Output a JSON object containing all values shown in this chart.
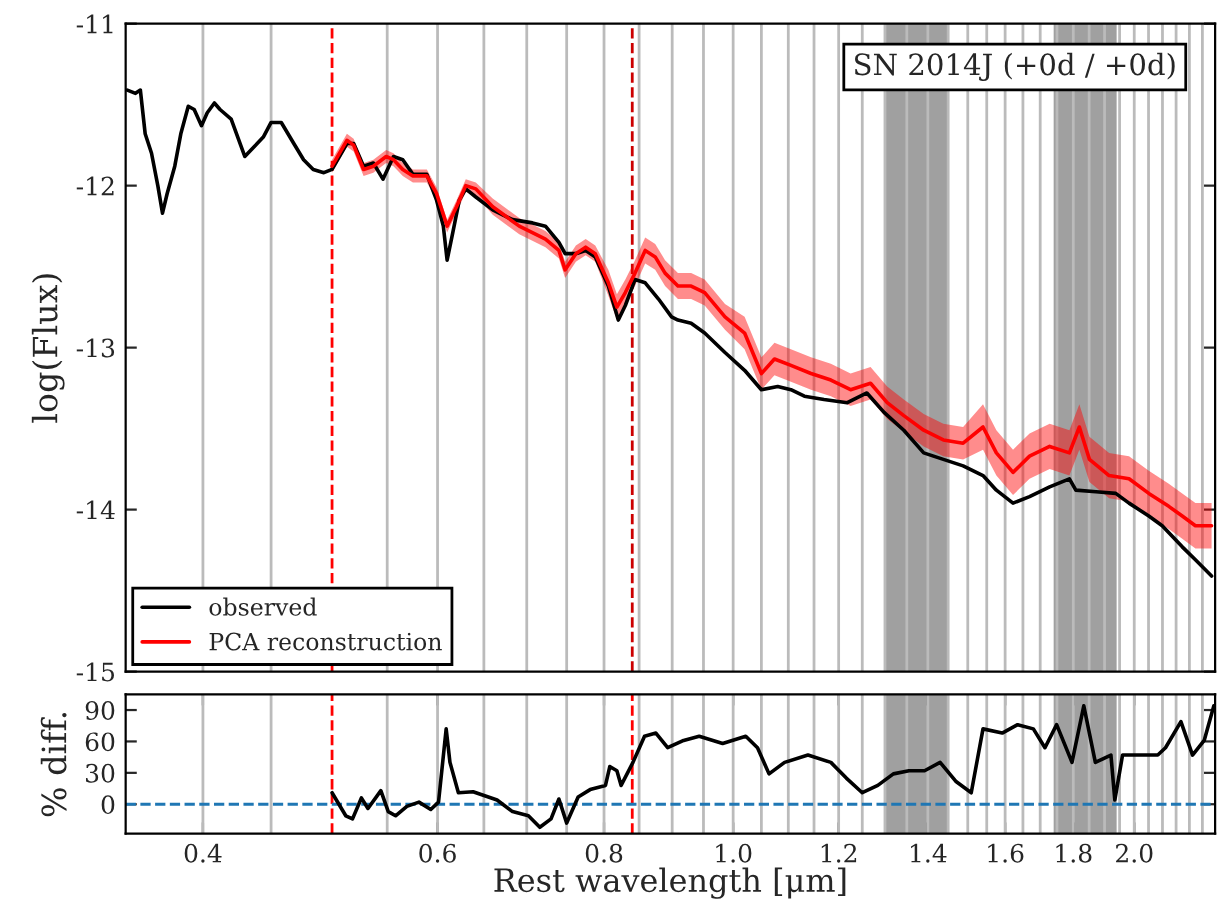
{
  "chart_data": [
    {
      "type": "line",
      "ylabel": "log(Flux)",
      "log": "x",
      "xlim": [
        0.35,
        2.3
      ],
      "ylim": [
        -15,
        -11
      ],
      "yticks": [
        -15,
        -14,
        -13,
        -12,
        -11
      ],
      "tick_labels": "y",
      "legend": "bottom left",
      "grid": false,
      "annotations": [
        "SN 2014J (+0d / +0d)"
      ],
      "bands": [
        {
          "axis": "x",
          "from": 1.3,
          "to": 1.45,
          "color": "#a0a0a0"
        },
        {
          "axis": "x",
          "from": 1.74,
          "to": 1.94,
          "color": "#a0a0a0"
        }
      ],
      "ref_lines": [
        {
          "axis": "x",
          "value": 0.4,
          "color": "#bbbbbb"
        },
        {
          "axis": "x",
          "value": 0.45,
          "color": "#bbbbbb"
        },
        {
          "axis": "x",
          "value": 0.55,
          "color": "#bbbbbb"
        },
        {
          "axis": "x",
          "value": 0.6,
          "color": "#bbbbbb"
        },
        {
          "axis": "x",
          "value": 0.65,
          "color": "#bbbbbb"
        },
        {
          "axis": "x",
          "value": 0.7,
          "color": "#bbbbbb"
        },
        {
          "axis": "x",
          "value": 0.75,
          "color": "#bbbbbb"
        },
        {
          "axis": "x",
          "value": 0.8,
          "color": "#bbbbbb"
        },
        {
          "axis": "x",
          "value": 0.85,
          "color": "#bbbbbb"
        },
        {
          "axis": "x",
          "value": 0.9,
          "color": "#bbbbbb"
        },
        {
          "axis": "x",
          "value": 0.95,
          "color": "#bbbbbb"
        },
        {
          "axis": "x",
          "value": 1.0,
          "color": "#bbbbbb"
        },
        {
          "axis": "x",
          "value": 1.05,
          "color": "#bbbbbb"
        },
        {
          "axis": "x",
          "value": 1.1,
          "color": "#bbbbbb"
        },
        {
          "axis": "x",
          "value": 1.15,
          "color": "#bbbbbb"
        },
        {
          "axis": "x",
          "value": 1.2,
          "color": "#bbbbbb"
        },
        {
          "axis": "x",
          "value": 1.25,
          "color": "#bbbbbb"
        },
        {
          "axis": "x",
          "value": 1.3,
          "color": "#bbbbbb"
        },
        {
          "axis": "x",
          "value": 1.35,
          "color": "#bbbbbb"
        },
        {
          "axis": "x",
          "value": 1.4,
          "color": "#bbbbbb"
        },
        {
          "axis": "x",
          "value": 1.45,
          "color": "#bbbbbb"
        },
        {
          "axis": "x",
          "value": 1.5,
          "color": "#bbbbbb"
        },
        {
          "axis": "x",
          "value": 1.55,
          "color": "#bbbbbb"
        },
        {
          "axis": "x",
          "value": 1.6,
          "color": "#bbbbbb"
        },
        {
          "axis": "x",
          "value": 1.65,
          "color": "#bbbbbb"
        },
        {
          "axis": "x",
          "value": 1.7,
          "color": "#bbbbbb"
        },
        {
          "axis": "x",
          "value": 1.75,
          "color": "#bbbbbb"
        },
        {
          "axis": "x",
          "value": 1.8,
          "color": "#bbbbbb"
        },
        {
          "axis": "x",
          "value": 1.85,
          "color": "#bbbbbb"
        },
        {
          "axis": "x",
          "value": 1.9,
          "color": "#bbbbbb"
        },
        {
          "axis": "x",
          "value": 1.95,
          "color": "#bbbbbb"
        },
        {
          "axis": "x",
          "value": 2.0,
          "color": "#bbbbbb"
        },
        {
          "axis": "x",
          "value": 2.05,
          "color": "#bbbbbb"
        },
        {
          "axis": "x",
          "value": 2.1,
          "color": "#bbbbbb"
        },
        {
          "axis": "x",
          "value": 2.15,
          "color": "#bbbbbb"
        },
        {
          "axis": "x",
          "value": 2.2,
          "color": "#bbbbbb"
        },
        {
          "axis": "x",
          "value": 2.25,
          "color": "#bbbbbb"
        },
        {
          "axis": "x",
          "value": 0.5,
          "color": "#ff0000",
          "line_style": "dashed"
        },
        {
          "axis": "x",
          "value": 0.84,
          "color": "#cc0000",
          "line_style": "dashed"
        }
      ],
      "series": [
        {
          "name": "observed",
          "color": "#000000",
          "x": [
            0.351,
            0.356,
            0.359,
            0.362,
            0.366,
            0.37,
            0.373,
            0.376,
            0.381,
            0.385,
            0.39,
            0.394,
            0.399,
            0.403,
            0.408,
            0.412,
            0.42,
            0.43,
            0.437,
            0.444,
            0.45,
            0.458,
            0.468,
            0.476,
            0.484,
            0.493,
            0.5,
            0.513,
            0.519,
            0.528,
            0.537,
            0.546,
            0.556,
            0.565,
            0.575,
            0.589,
            0.599,
            0.606,
            0.61,
            0.616,
            0.623,
            0.63,
            0.641,
            0.66,
            0.683,
            0.707,
            0.723,
            0.74,
            0.748,
            0.762,
            0.775,
            0.788,
            0.806,
            0.82,
            0.83,
            0.844,
            0.859,
            0.879,
            0.899,
            0.909,
            0.93,
            0.952,
            0.986,
            1.02,
            1.05,
            1.08,
            1.105,
            1.131,
            1.17,
            1.218,
            1.26,
            1.298,
            1.343,
            1.39,
            1.438,
            1.488,
            1.54,
            1.576,
            1.622,
            1.669,
            1.728,
            1.788,
            1.808,
            1.872,
            1.937,
            1.982,
            2.051,
            2.099,
            2.173,
            2.223,
            2.286
          ],
          "values": [
            -11.41,
            -11.43,
            -11.41,
            -11.68,
            -11.8,
            -12.0,
            -12.17,
            -12.05,
            -11.88,
            -11.68,
            -11.51,
            -11.53,
            -11.63,
            -11.55,
            -11.49,
            -11.53,
            -11.59,
            -11.82,
            -11.76,
            -11.7,
            -11.61,
            -11.61,
            -11.74,
            -11.84,
            -11.9,
            -11.92,
            -11.9,
            -11.74,
            -11.74,
            -11.88,
            -11.86,
            -11.96,
            -11.82,
            -11.84,
            -11.93,
            -11.93,
            -12.09,
            -12.25,
            -12.46,
            -12.29,
            -12.09,
            -12.02,
            -12.07,
            -12.15,
            -12.21,
            -12.23,
            -12.25,
            -12.35,
            -12.42,
            -12.42,
            -12.4,
            -12.44,
            -12.62,
            -12.83,
            -12.74,
            -12.58,
            -12.6,
            -12.7,
            -12.81,
            -12.83,
            -12.85,
            -12.91,
            -13.03,
            -13.14,
            -13.26,
            -13.24,
            -13.26,
            -13.3,
            -13.32,
            -13.34,
            -13.28,
            -13.4,
            -13.51,
            -13.65,
            -13.69,
            -13.73,
            -13.79,
            -13.88,
            -13.96,
            -13.92,
            -13.86,
            -13.81,
            -13.88,
            -13.89,
            -13.9,
            -13.96,
            -14.04,
            -14.1,
            -14.23,
            -14.31,
            -14.41
          ]
        },
        {
          "name": "PCA reconstruction",
          "color": "#ff0000",
          "x": [
            0.5,
            0.513,
            0.519,
            0.528,
            0.537,
            0.549,
            0.556,
            0.565,
            0.575,
            0.589,
            0.599,
            0.61,
            0.62,
            0.63,
            0.641,
            0.66,
            0.691,
            0.723,
            0.74,
            0.748,
            0.762,
            0.775,
            0.788,
            0.806,
            0.818,
            0.83,
            0.844,
            0.859,
            0.874,
            0.889,
            0.909,
            0.93,
            0.952,
            0.986,
            1.02,
            1.05,
            1.074,
            1.105,
            1.144,
            1.184,
            1.225,
            1.268,
            1.305,
            1.343,
            1.39,
            1.438,
            1.488,
            1.54,
            1.576,
            1.622,
            1.669,
            1.728,
            1.788,
            1.819,
            1.851,
            1.915,
            1.982,
            2.051,
            2.123,
            2.173,
            2.223,
            2.286
          ],
          "values": [
            -11.88,
            -11.72,
            -11.75,
            -11.9,
            -11.88,
            -11.82,
            -11.84,
            -11.9,
            -11.94,
            -11.94,
            -12.05,
            -12.25,
            -12.13,
            -12.0,
            -12.02,
            -12.13,
            -12.25,
            -12.33,
            -12.4,
            -12.52,
            -12.42,
            -12.38,
            -12.42,
            -12.6,
            -12.75,
            -12.66,
            -12.54,
            -12.4,
            -12.44,
            -12.54,
            -12.62,
            -12.62,
            -12.66,
            -12.81,
            -12.91,
            -13.16,
            -13.07,
            -13.11,
            -13.16,
            -13.2,
            -13.26,
            -13.22,
            -13.34,
            -13.42,
            -13.51,
            -13.57,
            -13.59,
            -13.49,
            -13.65,
            -13.77,
            -13.67,
            -13.61,
            -13.65,
            -13.49,
            -13.69,
            -13.79,
            -13.81,
            -13.9,
            -13.98,
            -14.04,
            -14.1,
            -14.1
          ],
          "lower": [
            -11.92,
            -11.76,
            -11.79,
            -11.94,
            -11.92,
            -11.86,
            -11.88,
            -11.94,
            -11.98,
            -11.98,
            -12.09,
            -12.29,
            -12.17,
            -12.04,
            -12.06,
            -12.18,
            -12.3,
            -12.38,
            -12.45,
            -12.57,
            -12.47,
            -12.43,
            -12.47,
            -12.68,
            -12.83,
            -12.74,
            -12.62,
            -12.48,
            -12.52,
            -12.62,
            -12.7,
            -12.7,
            -12.74,
            -12.89,
            -13.01,
            -13.26,
            -13.17,
            -13.21,
            -13.26,
            -13.3,
            -13.36,
            -13.32,
            -13.44,
            -13.52,
            -13.61,
            -13.67,
            -13.69,
            -13.63,
            -13.79,
            -13.91,
            -13.81,
            -13.75,
            -13.79,
            -13.63,
            -13.83,
            -13.93,
            -13.95,
            -14.04,
            -14.12,
            -14.18,
            -14.24,
            -14.24
          ],
          "upper": [
            -11.84,
            -11.68,
            -11.71,
            -11.86,
            -11.84,
            -11.78,
            -11.8,
            -11.86,
            -11.9,
            -11.9,
            -12.01,
            -12.21,
            -12.09,
            -11.96,
            -11.98,
            -12.08,
            -12.2,
            -12.28,
            -12.35,
            -12.47,
            -12.37,
            -12.33,
            -12.37,
            -12.52,
            -12.67,
            -12.58,
            -12.46,
            -12.32,
            -12.36,
            -12.46,
            -12.54,
            -12.54,
            -12.58,
            -12.73,
            -12.81,
            -13.06,
            -12.97,
            -13.01,
            -13.06,
            -13.1,
            -13.16,
            -13.12,
            -13.24,
            -13.32,
            -13.41,
            -13.47,
            -13.49,
            -13.35,
            -13.51,
            -13.63,
            -13.53,
            -13.47,
            -13.51,
            -13.35,
            -13.55,
            -13.65,
            -13.67,
            -13.76,
            -13.84,
            -13.9,
            -13.96,
            -13.96
          ]
        }
      ]
    },
    {
      "type": "line",
      "xlabel": "Rest wavelength [μm]",
      "ylabel": "% diff.",
      "log": "x",
      "xlim": [
        0.35,
        2.3
      ],
      "ylim": [
        -28,
        105
      ],
      "yticks": [
        0,
        30,
        60,
        90
      ],
      "xticks": [
        0.4,
        0.6,
        0.8,
        {
          "value": 1.0,
          "label": "1.0"
        },
        1.2,
        1.4,
        1.6,
        1.8,
        {
          "value": 2.0,
          "label": "2.0"
        }
      ],
      "grid": false,
      "bands": [
        {
          "axis": "x",
          "from": 1.3,
          "to": 1.45,
          "color": "#a0a0a0"
        },
        {
          "axis": "x",
          "from": 1.74,
          "to": 1.94,
          "color": "#a0a0a0"
        }
      ],
      "ref_lines": [
        {
          "axis": "x",
          "value": 0.4,
          "color": "#bbbbbb"
        },
        {
          "axis": "x",
          "value": 0.45,
          "color": "#bbbbbb"
        },
        {
          "axis": "x",
          "value": 0.55,
          "color": "#bbbbbb"
        },
        {
          "axis": "x",
          "value": 0.6,
          "color": "#bbbbbb"
        },
        {
          "axis": "x",
          "value": 0.65,
          "color": "#bbbbbb"
        },
        {
          "axis": "x",
          "value": 0.7,
          "color": "#bbbbbb"
        },
        {
          "axis": "x",
          "value": 0.75,
          "color": "#bbbbbb"
        },
        {
          "axis": "x",
          "value": 0.8,
          "color": "#bbbbbb"
        },
        {
          "axis": "x",
          "value": 0.85,
          "color": "#bbbbbb"
        },
        {
          "axis": "x",
          "value": 0.9,
          "color": "#bbbbbb"
        },
        {
          "axis": "x",
          "value": 0.95,
          "color": "#bbbbbb"
        },
        {
          "axis": "x",
          "value": 1.0,
          "color": "#bbbbbb"
        },
        {
          "axis": "x",
          "value": 1.05,
          "color": "#bbbbbb"
        },
        {
          "axis": "x",
          "value": 1.1,
          "color": "#bbbbbb"
        },
        {
          "axis": "x",
          "value": 1.15,
          "color": "#bbbbbb"
        },
        {
          "axis": "x",
          "value": 1.2,
          "color": "#bbbbbb"
        },
        {
          "axis": "x",
          "value": 1.25,
          "color": "#bbbbbb"
        },
        {
          "axis": "x",
          "value": 1.3,
          "color": "#bbbbbb"
        },
        {
          "axis": "x",
          "value": 1.35,
          "color": "#bbbbbb"
        },
        {
          "axis": "x",
          "value": 1.4,
          "color": "#bbbbbb"
        },
        {
          "axis": "x",
          "value": 1.45,
          "color": "#bbbbbb"
        },
        {
          "axis": "x",
          "value": 1.5,
          "color": "#bbbbbb"
        },
        {
          "axis": "x",
          "value": 1.55,
          "color": "#bbbbbb"
        },
        {
          "axis": "x",
          "value": 1.6,
          "color": "#bbbbbb"
        },
        {
          "axis": "x",
          "value": 1.65,
          "color": "#bbbbbb"
        },
        {
          "axis": "x",
          "value": 1.7,
          "color": "#bbbbbb"
        },
        {
          "axis": "x",
          "value": 1.75,
          "color": "#bbbbbb"
        },
        {
          "axis": "x",
          "value": 1.8,
          "color": "#bbbbbb"
        },
        {
          "axis": "x",
          "value": 1.85,
          "color": "#bbbbbb"
        },
        {
          "axis": "x",
          "value": 1.9,
          "color": "#bbbbbb"
        },
        {
          "axis": "x",
          "value": 1.95,
          "color": "#bbbbbb"
        },
        {
          "axis": "x",
          "value": 2.0,
          "color": "#bbbbbb"
        },
        {
          "axis": "x",
          "value": 2.05,
          "color": "#bbbbbb"
        },
        {
          "axis": "x",
          "value": 2.1,
          "color": "#bbbbbb"
        },
        {
          "axis": "x",
          "value": 2.15,
          "color": "#bbbbbb"
        },
        {
          "axis": "x",
          "value": 2.2,
          "color": "#bbbbbb"
        },
        {
          "axis": "x",
          "value": 2.25,
          "color": "#bbbbbb"
        },
        {
          "axis": "x",
          "value": 0.5,
          "color": "#ff0000",
          "line_style": "dashed"
        },
        {
          "axis": "x",
          "value": 0.84,
          "color": "#ff0000",
          "line_style": "dashed"
        },
        {
          "axis": "y",
          "value": 0,
          "color": "#1f77b4",
          "line_style": "dashed"
        }
      ],
      "series": [
        {
          "color": "#000000",
          "x": [
            0.5,
            0.512,
            0.518,
            0.526,
            0.532,
            0.544,
            0.551,
            0.558,
            0.569,
            0.581,
            0.593,
            0.601,
            0.609,
            0.613,
            0.622,
            0.638,
            0.665,
            0.683,
            0.702,
            0.716,
            0.73,
            0.74,
            0.75,
            0.765,
            0.781,
            0.802,
            0.808,
            0.818,
            0.824,
            0.841,
            0.858,
            0.875,
            0.893,
            0.918,
            0.943,
            0.982,
            1.022,
            1.043,
            1.064,
            1.093,
            1.138,
            1.184,
            1.216,
            1.25,
            1.284,
            1.319,
            1.355,
            1.392,
            1.43,
            1.469,
            1.509,
            1.54,
            1.592,
            1.635,
            1.68,
            1.714,
            1.749,
            1.796,
            1.833,
            1.87,
            1.921,
            1.934,
            1.96,
            2.027,
            2.083,
            2.111,
            2.168,
            2.212,
            2.257,
            2.295
          ],
          "values": [
            11,
            -11,
            -14,
            6,
            -4,
            13,
            -7,
            -11,
            -2,
            2,
            -5,
            2,
            72,
            40,
            11,
            12,
            4,
            -7,
            -11,
            -22,
            -14,
            5,
            -18,
            7,
            14,
            18,
            36,
            32,
            18,
            40,
            65,
            68,
            54,
            61,
            65,
            58,
            65,
            54,
            29,
            40,
            47,
            40,
            25,
            11,
            18,
            29,
            32,
            32,
            40,
            22,
            11,
            72,
            68,
            76,
            72,
            54,
            76,
            40,
            94,
            40,
            47,
            4,
            47,
            47,
            47,
            54,
            79,
            47,
            61,
            94
          ]
        }
      ]
    }
  ]
}
